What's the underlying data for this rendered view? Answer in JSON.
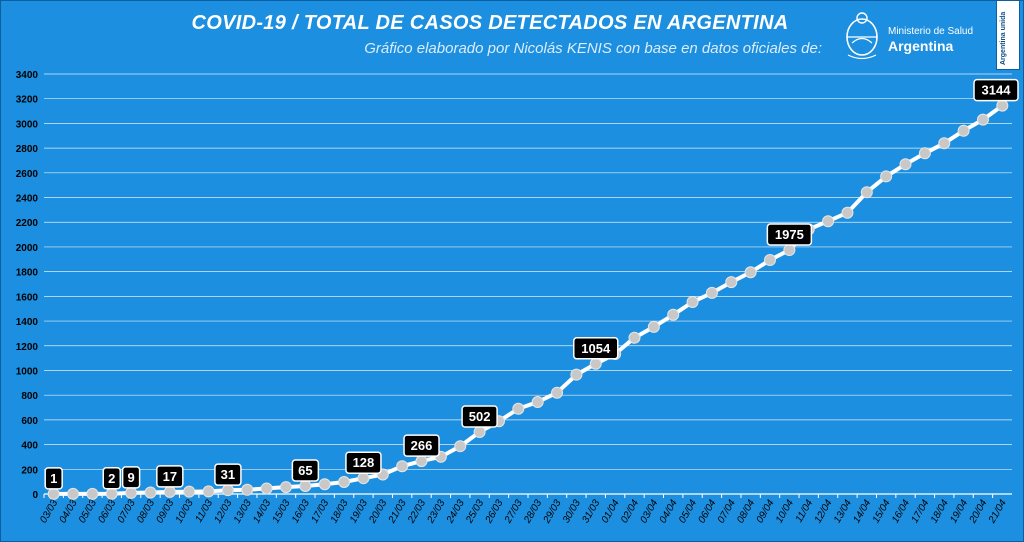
{
  "header": {
    "title": "COVID-19  /  TOTAL DE CASOS DETECTADOS EN ARGENTINA",
    "subtitle": "Gráfico elaborado por Nicolás KENIS con base en datos oficiales de:",
    "logo_line1": "Ministerio de Salud",
    "logo_line2": "Argentina",
    "badge_text": "Argentina unida"
  },
  "colors": {
    "background": "#1d8fe0",
    "line": "#ffffff",
    "marker": "#c8c8c8",
    "label_bg": "#000000",
    "label_text": "#ffffff",
    "grid": "#ffffff"
  },
  "chart_data": {
    "type": "line",
    "title": "COVID-19  /  TOTAL DE CASOS DETECTADOS EN ARGENTINA",
    "xlabel": "",
    "ylabel": "",
    "ylim": [
      0,
      3400
    ],
    "yticks": [
      0,
      200,
      400,
      600,
      800,
      1000,
      1200,
      1400,
      1600,
      1800,
      2000,
      2200,
      2400,
      2600,
      2800,
      3000,
      3200,
      3400
    ],
    "grid": true,
    "categories": [
      "03/03",
      "04/03",
      "05/03",
      "06/03",
      "07/03",
      "08/03",
      "09/03",
      "10/03",
      "11/03",
      "12/03",
      "13/03",
      "14/03",
      "15/03",
      "16/03",
      "17/03",
      "18/03",
      "19/03",
      "20/03",
      "21/03",
      "22/03",
      "23/03",
      "24/03",
      "25/03",
      "26/03",
      "27/03",
      "28/03",
      "29/03",
      "30/03",
      "31/03",
      "01/04",
      "02/04",
      "03/04",
      "04/04",
      "05/04",
      "06/04",
      "07/04",
      "08/04",
      "09/04",
      "10/04",
      "11/04",
      "12/04",
      "13/04",
      "14/04",
      "15/04",
      "16/04",
      "17/04",
      "18/04",
      "19/04",
      "20/04",
      "21/04"
    ],
    "series": [
      {
        "values": [
          1,
          1,
          1,
          2,
          9,
          12,
          17,
          19,
          21,
          31,
          34,
          45,
          56,
          65,
          79,
          97,
          128,
          158,
          225,
          266,
          301,
          387,
          502,
          589,
          690,
          745,
          820,
          966,
          1054,
          1133,
          1265,
          1353,
          1451,
          1554,
          1628,
          1715,
          1795,
          1894,
          1975,
          2142,
          2208,
          2277,
          2443,
          2571,
          2669,
          2758,
          2839,
          2941,
          3031,
          3144
        ]
      }
    ],
    "data_labels": [
      {
        "category": "03/03",
        "text": "1"
      },
      {
        "category": "06/03",
        "text": "2"
      },
      {
        "category": "07/03",
        "text": "9"
      },
      {
        "category": "09/03",
        "text": "17"
      },
      {
        "category": "12/03",
        "text": "31"
      },
      {
        "category": "16/03",
        "text": "65"
      },
      {
        "category": "19/03",
        "text": "128"
      },
      {
        "category": "22/03",
        "text": "266"
      },
      {
        "category": "25/03",
        "text": "502"
      },
      {
        "category": "31/03",
        "text": "1054"
      },
      {
        "category": "10/04",
        "text": "1975"
      },
      {
        "category": "21/04",
        "text": "3144"
      }
    ]
  }
}
